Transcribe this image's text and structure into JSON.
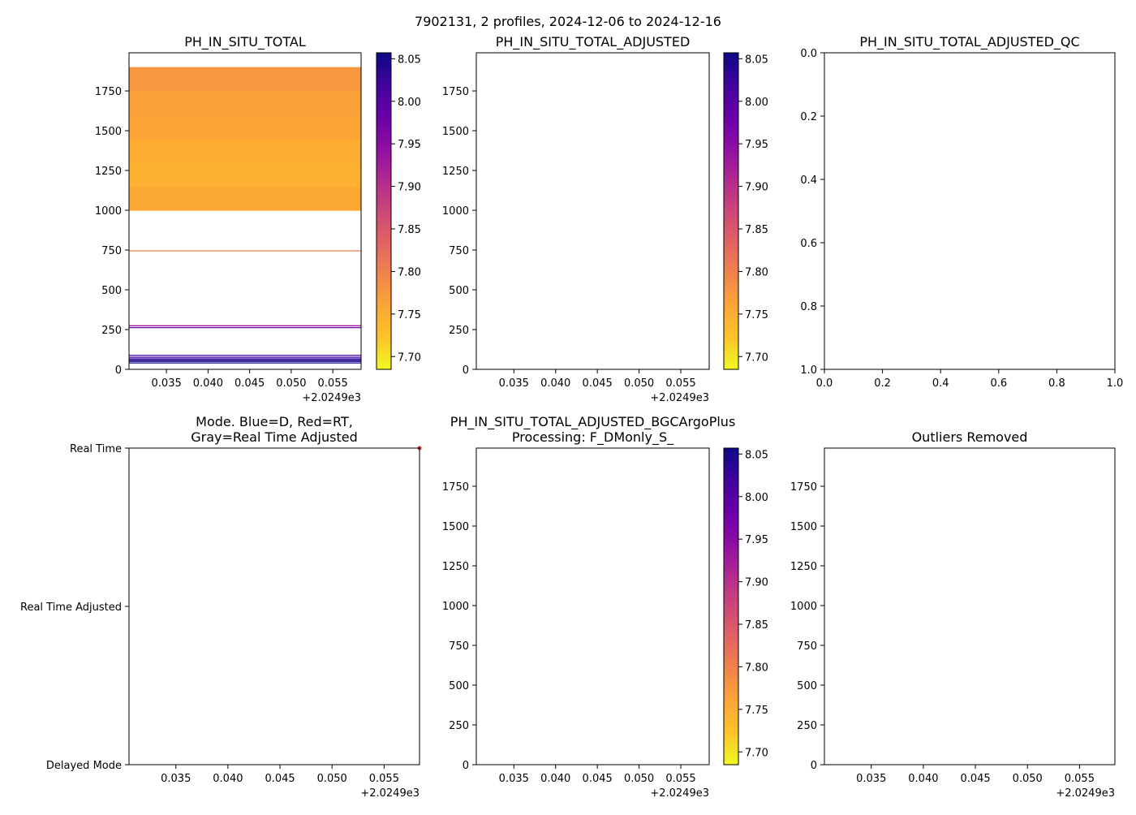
{
  "figure": {
    "suptitle": "7902131, 2 profiles, 2024-12-06 to 2024-12-16"
  },
  "colors": {
    "colormap": [
      "#f0f921",
      "#fdc328",
      "#fca636",
      "#f1844b",
      "#e16462",
      "#cc4778",
      "#b12a90",
      "#8f0da4",
      "#6a00a8",
      "#41049d",
      "#0d0887"
    ]
  },
  "chart_data": [
    {
      "id": "ph_in_situ_total",
      "type": "heatmap",
      "title": "PH_IN_SITU_TOTAL",
      "xlim": [
        2024.9305,
        2024.9584
      ],
      "xticks": [
        2024.935,
        2024.94,
        2024.945,
        2024.95,
        2024.955
      ],
      "xtick_labels": [
        "0.035",
        "0.040",
        "0.045",
        "0.050",
        "0.055"
      ],
      "x_offset_label": "+2.0249e3",
      "ylim": [
        1990,
        0
      ],
      "yticks": [
        0,
        250,
        500,
        750,
        1000,
        1250,
        1500,
        1750
      ],
      "ytick_labels": [
        "0",
        "250",
        "500",
        "750",
        "1000",
        "1250",
        "1500",
        "1750"
      ],
      "colorbar": {
        "range": [
          7.685,
          8.057
        ],
        "ticks": [
          7.7,
          7.75,
          7.8,
          7.85,
          7.9,
          7.95,
          8.0,
          8.05
        ],
        "tick_labels": [
          "7.70",
          "7.75",
          "7.80",
          "7.85",
          "7.90",
          "7.95",
          "8.00",
          "8.05"
        ]
      },
      "lines": [
        {
          "depth": 40,
          "value": 8.05
        },
        {
          "depth": 50,
          "value": 8.04
        },
        {
          "depth": 58,
          "value": 8.05
        },
        {
          "depth": 66,
          "value": 8.03
        },
        {
          "depth": 76,
          "value": 8.02
        },
        {
          "depth": 88,
          "value": 8.01
        },
        {
          "depth": 262,
          "value": 7.98
        },
        {
          "depth": 274,
          "value": 7.93
        },
        {
          "depth": 745,
          "value": 7.8
        }
      ],
      "bands": [
        {
          "top": 1000,
          "bottom": 1150,
          "value": 7.755
        },
        {
          "top": 1150,
          "bottom": 1300,
          "value": 7.745
        },
        {
          "top": 1300,
          "bottom": 1450,
          "value": 7.75
        },
        {
          "top": 1450,
          "bottom": 1600,
          "value": 7.76
        },
        {
          "top": 1600,
          "bottom": 1750,
          "value": 7.765
        },
        {
          "top": 1750,
          "bottom": 1900,
          "value": 7.775
        }
      ]
    },
    {
      "id": "ph_in_situ_total_adjusted",
      "type": "heatmap",
      "title": "PH_IN_SITU_TOTAL_ADJUSTED",
      "xlim": [
        2024.9305,
        2024.9584
      ],
      "xticks": [
        2024.935,
        2024.94,
        2024.945,
        2024.95,
        2024.955
      ],
      "xtick_labels": [
        "0.035",
        "0.040",
        "0.045",
        "0.050",
        "0.055"
      ],
      "x_offset_label": "+2.0249e3",
      "ylim": [
        1990,
        0
      ],
      "yticks": [
        0,
        250,
        500,
        750,
        1000,
        1250,
        1500,
        1750
      ],
      "ytick_labels": [
        "0",
        "250",
        "500",
        "750",
        "1000",
        "1250",
        "1500",
        "1750"
      ],
      "colorbar": {
        "range": [
          7.685,
          8.057
        ],
        "ticks": [
          7.7,
          7.75,
          7.8,
          7.85,
          7.9,
          7.95,
          8.0,
          8.05
        ],
        "tick_labels": [
          "7.70",
          "7.75",
          "7.80",
          "7.85",
          "7.90",
          "7.95",
          "8.00",
          "8.05"
        ]
      },
      "lines": [],
      "bands": []
    },
    {
      "id": "ph_in_situ_total_adjusted_qc",
      "type": "scatter",
      "title": "PH_IN_SITU_TOTAL_ADJUSTED_QC",
      "xlim": [
        0,
        1
      ],
      "xticks": [
        0,
        0.2,
        0.4,
        0.6,
        0.8,
        1.0
      ],
      "xtick_labels": [
        "0.0",
        "0.2",
        "0.4",
        "0.6",
        "0.8",
        "1.0"
      ],
      "x_offset_label": "",
      "ylim": [
        0,
        1
      ],
      "yticks": [
        0,
        0.2,
        0.4,
        0.6,
        0.8,
        1.0
      ],
      "ytick_labels": [
        "0.0",
        "0.2",
        "0.4",
        "0.6",
        "0.8",
        "1.0"
      ],
      "points": []
    },
    {
      "id": "mode",
      "type": "scatter",
      "title": "Mode. Blue=D, Red=RT,\nGray=Real Time Adjusted",
      "xlim": [
        2024.9305,
        2024.9584
      ],
      "xticks": [
        2024.935,
        2024.94,
        2024.945,
        2024.95,
        2024.955
      ],
      "xtick_labels": [
        "0.035",
        "0.040",
        "0.045",
        "0.050",
        "0.055"
      ],
      "x_offset_label": "+2.0249e3",
      "ylim": [
        0,
        2
      ],
      "yticks": [
        0,
        1,
        2
      ],
      "ytick_labels": [
        "Real Time",
        "Real Time Adjusted",
        "Delayed Mode"
      ],
      "points": [
        {
          "x": 2024.9584,
          "y": 0,
          "color": "#d62728"
        }
      ]
    },
    {
      "id": "ph_bgcargoplus",
      "type": "heatmap",
      "title": "PH_IN_SITU_TOTAL_ADJUSTED_BGCArgoPlus\nProcessing: F_DMonly_S_",
      "xlim": [
        2024.9305,
        2024.9584
      ],
      "xticks": [
        2024.935,
        2024.94,
        2024.945,
        2024.95,
        2024.955
      ],
      "xtick_labels": [
        "0.035",
        "0.040",
        "0.045",
        "0.050",
        "0.055"
      ],
      "x_offset_label": "+2.0249e3",
      "ylim": [
        1990,
        0
      ],
      "yticks": [
        0,
        250,
        500,
        750,
        1000,
        1250,
        1500,
        1750
      ],
      "ytick_labels": [
        "0",
        "250",
        "500",
        "750",
        "1000",
        "1250",
        "1500",
        "1750"
      ],
      "colorbar": {
        "range": [
          7.685,
          8.057
        ],
        "ticks": [
          7.7,
          7.75,
          7.8,
          7.85,
          7.9,
          7.95,
          8.0,
          8.05
        ],
        "tick_labels": [
          "7.70",
          "7.75",
          "7.80",
          "7.85",
          "7.90",
          "7.95",
          "8.00",
          "8.05"
        ]
      },
      "lines": [],
      "bands": []
    },
    {
      "id": "outliers_removed",
      "type": "heatmap",
      "title": "Outliers Removed",
      "xlim": [
        2024.9305,
        2024.9584
      ],
      "xticks": [
        2024.935,
        2024.94,
        2024.945,
        2024.95,
        2024.955
      ],
      "xtick_labels": [
        "0.035",
        "0.040",
        "0.045",
        "0.050",
        "0.055"
      ],
      "x_offset_label": "+2.0249e3",
      "ylim": [
        1990,
        0
      ],
      "yticks": [
        0,
        250,
        500,
        750,
        1000,
        1250,
        1500,
        1750
      ],
      "ytick_labels": [
        "0",
        "250",
        "500",
        "750",
        "1000",
        "1250",
        "1500",
        "1750"
      ],
      "lines": [],
      "bands": []
    }
  ]
}
